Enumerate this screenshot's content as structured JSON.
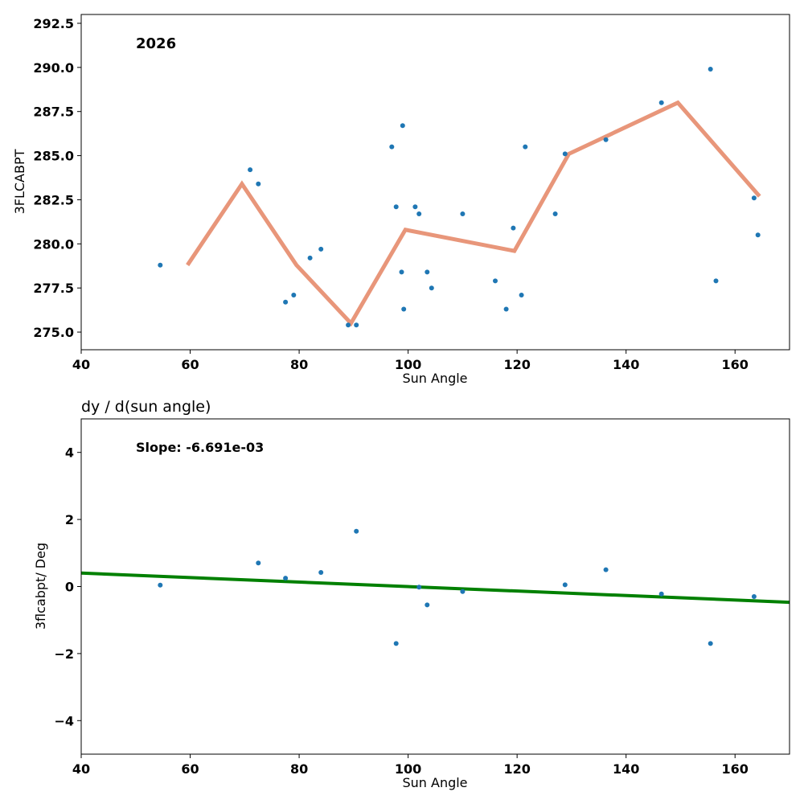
{
  "chart_data": [
    {
      "type": "scatter",
      "title": "",
      "annotation": "2026",
      "xlabel": "Sun Angle",
      "ylabel": "3FLCABPT",
      "xlim": [
        40,
        170
      ],
      "ylim": [
        274.0,
        293.0
      ],
      "xticks": [
        "40",
        "60",
        "80",
        "100",
        "120",
        "140",
        "160"
      ],
      "yticks": [
        "275.0",
        "277.5",
        "280.0",
        "282.5",
        "285.0",
        "287.5",
        "290.0",
        "292.5"
      ],
      "series": [
        {
          "type": "scatter",
          "color": "#1f77b4",
          "x": [
            54.5,
            71.0,
            72.5,
            77.5,
            79.0,
            82.0,
            84.0,
            89.0,
            90.5,
            97.0,
            97.8,
            98.8,
            99.0,
            99.2,
            101.3,
            102.0,
            103.5,
            104.3,
            110.0,
            116.0,
            118.0,
            119.3,
            120.8,
            121.5,
            127.0,
            128.8,
            136.3,
            146.5,
            155.5,
            156.5,
            163.5,
            164.2
          ],
          "y": [
            278.8,
            284.2,
            283.4,
            276.7,
            277.1,
            279.2,
            279.7,
            275.4,
            275.4,
            285.5,
            282.1,
            278.4,
            286.7,
            276.3,
            282.1,
            281.7,
            278.4,
            277.5,
            281.7,
            277.9,
            276.3,
            280.9,
            277.1,
            285.5,
            281.7,
            285.1,
            285.9,
            288.0,
            289.9,
            277.9,
            282.6,
            280.5
          ]
        },
        {
          "type": "line",
          "color": "#e8967a",
          "x": [
            59.5,
            69.5,
            79.5,
            89.5,
            99.5,
            119.5,
            129.5,
            149.5,
            164.5
          ],
          "y": [
            278.8,
            283.4,
            278.8,
            275.5,
            280.8,
            279.6,
            285.1,
            288.0,
            282.7
          ]
        }
      ]
    },
    {
      "type": "scatter",
      "title": "dy / d(sun angle)",
      "annotation": "Slope: -6.691e-03",
      "xlabel": "Sun Angle",
      "ylabel": "3flcabpt/ Deg",
      "xlim": [
        40,
        170
      ],
      "ylim": [
        -5,
        5
      ],
      "xticks": [
        "40",
        "60",
        "80",
        "100",
        "120",
        "140",
        "160"
      ],
      "yticks": [
        "−4",
        "−2",
        "0",
        "2",
        "4"
      ],
      "series": [
        {
          "type": "scatter",
          "color": "#1f77b4",
          "x": [
            54.5,
            72.5,
            77.5,
            84.0,
            90.5,
            97.8,
            102.0,
            103.5,
            110.0,
            128.8,
            136.3,
            146.5,
            155.5,
            163.5
          ],
          "y": [
            0.04,
            0.7,
            0.25,
            0.42,
            1.65,
            -1.7,
            -0.02,
            -0.55,
            -0.15,
            0.05,
            0.5,
            -0.22,
            -1.7,
            -0.3
          ]
        },
        {
          "type": "line",
          "color": "#008000",
          "x": [
            40,
            170
          ],
          "y": [
            0.4,
            -0.47
          ]
        }
      ]
    }
  ]
}
